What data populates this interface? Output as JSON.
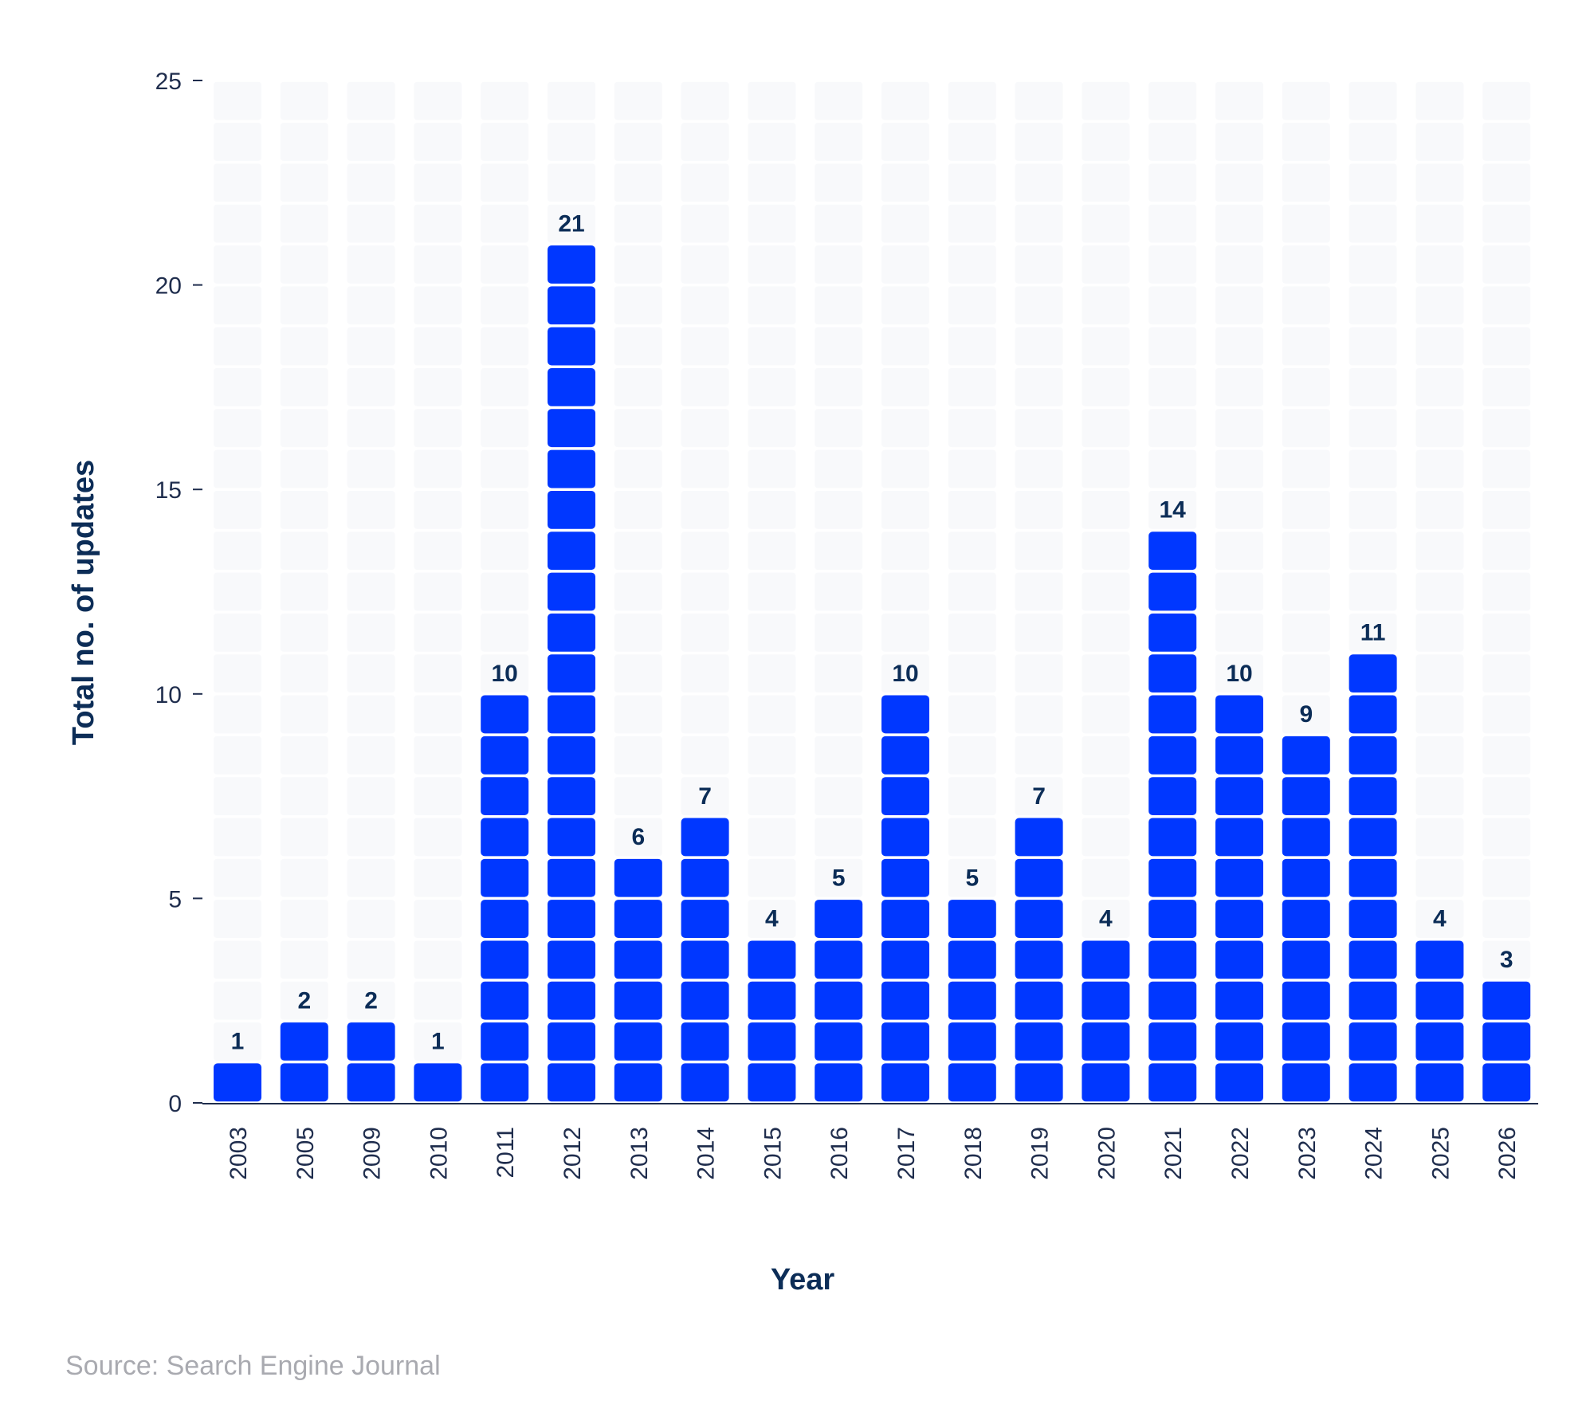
{
  "colors": {
    "bar": "#0037ff",
    "track": "#f8f9fb",
    "text": "#0c2d57",
    "axis": "#1f2d4d",
    "source": "#a9aab0"
  },
  "source": "Source: Search Engine Journal",
  "chart_data": {
    "type": "bar",
    "title": "",
    "xlabel": "Year",
    "ylabel": "Total no. of updates",
    "ylim": [
      0,
      25
    ],
    "yticks": [
      0,
      5,
      10,
      15,
      20,
      25
    ],
    "grid": false,
    "style": "stacked unit blocks",
    "categories": [
      "2003",
      "2005",
      "2009",
      "2010",
      "2011",
      "2012",
      "2013",
      "2014",
      "2015",
      "2016",
      "2017",
      "2018",
      "2019",
      "2020",
      "2021",
      "2022",
      "2023",
      "2024",
      "2025",
      "2026"
    ],
    "values": [
      1,
      2,
      2,
      1,
      10,
      21,
      6,
      7,
      4,
      5,
      10,
      5,
      7,
      4,
      14,
      10,
      9,
      11,
      4,
      3
    ]
  }
}
